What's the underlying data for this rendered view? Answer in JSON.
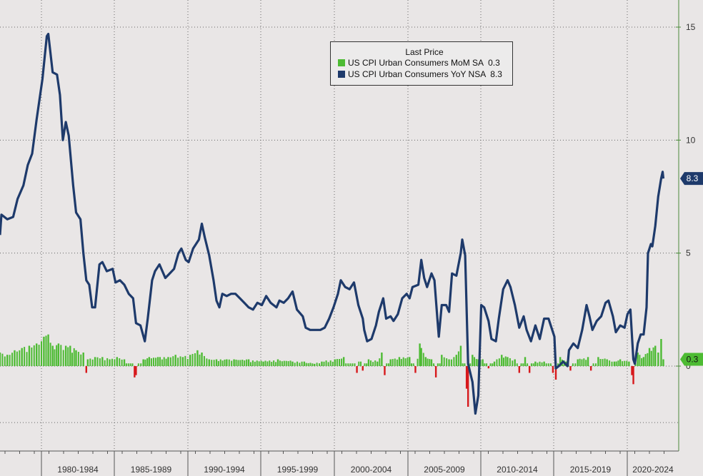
{
  "chart_data": {
    "type": "line",
    "title": "",
    "legend": {
      "title": "Last Price",
      "placement": "top-center",
      "entries": [
        {
          "name": "US CPI Urban Consumers MoM SA",
          "last": "0.3",
          "color": "#4dbb33"
        },
        {
          "name": "US CPI Urban Consumers YoY NSA",
          "last": "8.3",
          "color": "#1e3a6b"
        }
      ]
    },
    "x_ticks": [
      "1980-1984",
      "1985-1989",
      "1990-1994",
      "1995-1999",
      "2000-2004",
      "2005-2009",
      "2010-2014",
      "2015-2019",
      "2020-2024"
    ],
    "y_ticks": [
      "15",
      "10",
      "5",
      "0"
    ],
    "ylim": [
      -2.6,
      16
    ],
    "xlim": [
      1977.0,
      2023.4
    ],
    "grid": true,
    "tags": [
      {
        "value": 8.3,
        "label": "8.3",
        "color": "#1e3a6b"
      },
      {
        "value": 0.3,
        "label": "0.3",
        "color": "#4dbb33"
      }
    ],
    "series": [
      {
        "name": "US CPI Urban Consumers YoY NSA",
        "kind": "line",
        "color": "#1e3a6b",
        "points": [
          [
            1977.0,
            5.8
          ],
          [
            1977.1,
            6.7
          ],
          [
            1977.5,
            6.5
          ],
          [
            1977.9,
            6.6
          ],
          [
            1978.2,
            7.4
          ],
          [
            1978.6,
            8.0
          ],
          [
            1978.9,
            8.9
          ],
          [
            1979.2,
            9.4
          ],
          [
            1979.5,
            10.9
          ],
          [
            1979.9,
            12.7
          ],
          [
            1980.2,
            14.6
          ],
          [
            1980.3,
            14.7
          ],
          [
            1980.6,
            13.0
          ],
          [
            1980.9,
            12.9
          ],
          [
            1981.1,
            12.0
          ],
          [
            1981.3,
            10.0
          ],
          [
            1981.5,
            10.8
          ],
          [
            1981.7,
            10.2
          ],
          [
            1982.0,
            8.0
          ],
          [
            1982.2,
            6.8
          ],
          [
            1982.5,
            6.5
          ],
          [
            1982.7,
            5.0
          ],
          [
            1982.9,
            3.8
          ],
          [
            1983.1,
            3.6
          ],
          [
            1983.3,
            2.6
          ],
          [
            1983.5,
            2.6
          ],
          [
            1983.8,
            4.5
          ],
          [
            1984.0,
            4.6
          ],
          [
            1984.3,
            4.2
          ],
          [
            1984.7,
            4.3
          ],
          [
            1984.9,
            3.7
          ],
          [
            1985.2,
            3.8
          ],
          [
            1985.5,
            3.6
          ],
          [
            1985.8,
            3.2
          ],
          [
            1986.1,
            3.0
          ],
          [
            1986.3,
            1.9
          ],
          [
            1986.6,
            1.8
          ],
          [
            1986.9,
            1.1
          ],
          [
            1987.1,
            2.1
          ],
          [
            1987.4,
            3.8
          ],
          [
            1987.6,
            4.2
          ],
          [
            1987.9,
            4.5
          ],
          [
            1988.3,
            3.9
          ],
          [
            1988.6,
            4.1
          ],
          [
            1988.9,
            4.3
          ],
          [
            1989.2,
            5.0
          ],
          [
            1989.4,
            5.2
          ],
          [
            1989.7,
            4.7
          ],
          [
            1989.9,
            4.6
          ],
          [
            1990.2,
            5.2
          ],
          [
            1990.6,
            5.6
          ],
          [
            1990.8,
            6.3
          ],
          [
            1991.0,
            5.7
          ],
          [
            1991.3,
            4.9
          ],
          [
            1991.6,
            3.8
          ],
          [
            1991.8,
            2.9
          ],
          [
            1992.0,
            2.6
          ],
          [
            1992.2,
            3.2
          ],
          [
            1992.5,
            3.1
          ],
          [
            1992.8,
            3.2
          ],
          [
            1993.1,
            3.2
          ],
          [
            1993.4,
            3.0
          ],
          [
            1993.7,
            2.8
          ],
          [
            1994.0,
            2.6
          ],
          [
            1994.3,
            2.5
          ],
          [
            1994.6,
            2.8
          ],
          [
            1994.9,
            2.7
          ],
          [
            1995.2,
            3.1
          ],
          [
            1995.5,
            2.8
          ],
          [
            1995.9,
            2.6
          ],
          [
            1996.1,
            2.9
          ],
          [
            1996.4,
            2.8
          ],
          [
            1996.7,
            3.0
          ],
          [
            1997.0,
            3.3
          ],
          [
            1997.3,
            2.5
          ],
          [
            1997.7,
            2.2
          ],
          [
            1997.9,
            1.7
          ],
          [
            1998.2,
            1.6
          ],
          [
            1998.6,
            1.6
          ],
          [
            1998.9,
            1.6
          ],
          [
            1999.2,
            1.7
          ],
          [
            1999.5,
            2.1
          ],
          [
            1999.8,
            2.6
          ],
          [
            2000.1,
            3.2
          ],
          [
            2000.3,
            3.8
          ],
          [
            2000.6,
            3.5
          ],
          [
            2000.9,
            3.4
          ],
          [
            2001.2,
            3.7
          ],
          [
            2001.5,
            2.7
          ],
          [
            2001.8,
            2.1
          ],
          [
            2001.9,
            1.6
          ],
          [
            2002.1,
            1.1
          ],
          [
            2002.4,
            1.2
          ],
          [
            2002.7,
            1.8
          ],
          [
            2002.9,
            2.4
          ],
          [
            2003.2,
            3.0
          ],
          [
            2003.4,
            2.1
          ],
          [
            2003.7,
            2.2
          ],
          [
            2003.9,
            2.0
          ],
          [
            2004.2,
            2.3
          ],
          [
            2004.5,
            3.0
          ],
          [
            2004.8,
            3.2
          ],
          [
            2005.0,
            3.0
          ],
          [
            2005.2,
            3.5
          ],
          [
            2005.6,
            3.6
          ],
          [
            2005.8,
            4.7
          ],
          [
            2006.0,
            3.9
          ],
          [
            2006.2,
            3.5
          ],
          [
            2006.5,
            4.1
          ],
          [
            2006.7,
            3.8
          ],
          [
            2006.9,
            2.1
          ],
          [
            2007.0,
            1.3
          ],
          [
            2007.2,
            2.7
          ],
          [
            2007.5,
            2.7
          ],
          [
            2007.7,
            2.4
          ],
          [
            2007.9,
            4.1
          ],
          [
            2008.2,
            4.0
          ],
          [
            2008.5,
            5.0
          ],
          [
            2008.6,
            5.6
          ],
          [
            2008.8,
            4.9
          ],
          [
            2009.0,
            0.1
          ],
          [
            2009.3,
            -0.7
          ],
          [
            2009.5,
            -2.1
          ],
          [
            2009.7,
            -1.3
          ],
          [
            2009.9,
            2.7
          ],
          [
            2010.1,
            2.6
          ],
          [
            2010.4,
            2.0
          ],
          [
            2010.6,
            1.2
          ],
          [
            2010.9,
            1.1
          ],
          [
            2011.1,
            2.1
          ],
          [
            2011.4,
            3.4
          ],
          [
            2011.7,
            3.8
          ],
          [
            2011.9,
            3.5
          ],
          [
            2012.2,
            2.7
          ],
          [
            2012.5,
            1.7
          ],
          [
            2012.8,
            2.2
          ],
          [
            2013.0,
            1.6
          ],
          [
            2013.3,
            1.1
          ],
          [
            2013.6,
            1.8
          ],
          [
            2013.9,
            1.2
          ],
          [
            2014.2,
            2.1
          ],
          [
            2014.5,
            2.1
          ],
          [
            2014.9,
            1.3
          ],
          [
            2015.0,
            -0.1
          ],
          [
            2015.2,
            0.0
          ],
          [
            2015.5,
            0.2
          ],
          [
            2015.8,
            0.0
          ],
          [
            2015.9,
            0.7
          ],
          [
            2016.2,
            1.0
          ],
          [
            2016.5,
            0.8
          ],
          [
            2016.8,
            1.6
          ],
          [
            2017.1,
            2.7
          ],
          [
            2017.3,
            2.2
          ],
          [
            2017.5,
            1.6
          ],
          [
            2017.8,
            2.0
          ],
          [
            2018.1,
            2.2
          ],
          [
            2018.4,
            2.8
          ],
          [
            2018.6,
            2.9
          ],
          [
            2018.9,
            2.2
          ],
          [
            2019.1,
            1.5
          ],
          [
            2019.4,
            1.8
          ],
          [
            2019.7,
            1.7
          ],
          [
            2019.9,
            2.3
          ],
          [
            2020.1,
            2.5
          ],
          [
            2020.3,
            0.3
          ],
          [
            2020.4,
            0.1
          ],
          [
            2020.6,
            1.0
          ],
          [
            2020.8,
            1.4
          ],
          [
            2021.0,
            1.4
          ],
          [
            2021.2,
            2.6
          ],
          [
            2021.3,
            5.0
          ],
          [
            2021.5,
            5.4
          ],
          [
            2021.6,
            5.3
          ],
          [
            2021.8,
            6.2
          ],
          [
            2022.0,
            7.5
          ],
          [
            2022.2,
            8.3
          ],
          [
            2022.3,
            8.6
          ],
          [
            2022.35,
            8.3
          ]
        ]
      },
      {
        "name": "US CPI Urban Consumers MoM SA",
        "kind": "bar",
        "color_positive": "#4dbb33",
        "color_negative": "#d7191c",
        "points": [
          [
            1977.0,
            0.6
          ],
          [
            1977.5,
            0.5
          ],
          [
            1978.0,
            0.7
          ],
          [
            1978.5,
            0.8
          ],
          [
            1979.0,
            0.9
          ],
          [
            1979.5,
            1.0
          ],
          [
            1980.0,
            1.3
          ],
          [
            1980.3,
            1.4
          ],
          [
            1980.6,
            0.9
          ],
          [
            1981.0,
            1.0
          ],
          [
            1981.5,
            0.9
          ],
          [
            1981.8,
            0.9
          ],
          [
            1982.2,
            0.7
          ],
          [
            1982.7,
            0.6
          ],
          [
            1982.9,
            -0.3
          ],
          [
            1983.0,
            0.3
          ],
          [
            1983.5,
            0.4
          ],
          [
            1984.0,
            0.4
          ],
          [
            1984.5,
            0.3
          ],
          [
            1985.0,
            0.4
          ],
          [
            1985.5,
            0.3
          ],
          [
            1986.2,
            -0.5
          ],
          [
            1986.3,
            -0.4
          ],
          [
            1986.8,
            0.3
          ],
          [
            1987.2,
            0.4
          ],
          [
            1987.8,
            0.4
          ],
          [
            1988.5,
            0.4
          ],
          [
            1989.0,
            0.5
          ],
          [
            1989.5,
            0.4
          ],
          [
            1990.0,
            0.5
          ],
          [
            1990.5,
            0.7
          ],
          [
            1990.8,
            0.6
          ],
          [
            1991.3,
            0.3
          ],
          [
            1991.8,
            0.3
          ],
          [
            1992.5,
            0.3
          ],
          [
            1993.0,
            0.3
          ],
          [
            1994.0,
            0.3
          ],
          [
            1995.0,
            0.2
          ],
          [
            1996.0,
            0.3
          ],
          [
            1997.0,
            0.2
          ],
          [
            1997.8,
            0.2
          ],
          [
            1998.5,
            0.1
          ],
          [
            1999.0,
            0.2
          ],
          [
            1999.9,
            0.3
          ],
          [
            2000.5,
            0.4
          ],
          [
            2001.4,
            -0.3
          ],
          [
            2001.8,
            -0.2
          ],
          [
            2002.2,
            0.3
          ],
          [
            2002.8,
            0.2
          ],
          [
            2003.1,
            0.6
          ],
          [
            2003.3,
            -0.4
          ],
          [
            2003.7,
            0.3
          ],
          [
            2004.3,
            0.4
          ],
          [
            2005.0,
            0.4
          ],
          [
            2005.4,
            -0.3
          ],
          [
            2005.7,
            1.0
          ],
          [
            2005.8,
            0.8
          ],
          [
            2006.1,
            0.4
          ],
          [
            2006.5,
            0.3
          ],
          [
            2006.8,
            -0.5
          ],
          [
            2007.2,
            0.5
          ],
          [
            2007.7,
            0.3
          ],
          [
            2008.2,
            0.5
          ],
          [
            2008.5,
            0.9
          ],
          [
            2008.9,
            -1.0
          ],
          [
            2009.0,
            -1.8
          ],
          [
            2009.3,
            0.5
          ],
          [
            2009.7,
            0.3
          ],
          [
            2010.0,
            0.3
          ],
          [
            2010.4,
            -0.1
          ],
          [
            2010.8,
            0.2
          ],
          [
            2011.3,
            0.5
          ],
          [
            2011.7,
            0.4
          ],
          [
            2012.2,
            0.3
          ],
          [
            2012.5,
            -0.3
          ],
          [
            2012.9,
            0.4
          ],
          [
            2013.2,
            -0.3
          ],
          [
            2013.6,
            0.2
          ],
          [
            2014.2,
            0.2
          ],
          [
            2014.8,
            -0.3
          ],
          [
            2015.0,
            -0.6
          ],
          [
            2015.3,
            0.4
          ],
          [
            2015.7,
            0.2
          ],
          [
            2016.0,
            -0.2
          ],
          [
            2016.5,
            0.3
          ],
          [
            2017.2,
            0.4
          ],
          [
            2017.4,
            -0.2
          ],
          [
            2017.9,
            0.4
          ],
          [
            2018.5,
            0.3
          ],
          [
            2019.0,
            0.2
          ],
          [
            2019.4,
            0.3
          ],
          [
            2020.0,
            0.2
          ],
          [
            2020.2,
            -0.4
          ],
          [
            2020.3,
            -0.8
          ],
          [
            2020.6,
            0.6
          ],
          [
            2021.0,
            0.4
          ],
          [
            2021.4,
            0.8
          ],
          [
            2021.8,
            0.9
          ],
          [
            2022.0,
            0.6
          ],
          [
            2022.2,
            1.2
          ],
          [
            2022.35,
            0.3
          ]
        ]
      }
    ]
  }
}
